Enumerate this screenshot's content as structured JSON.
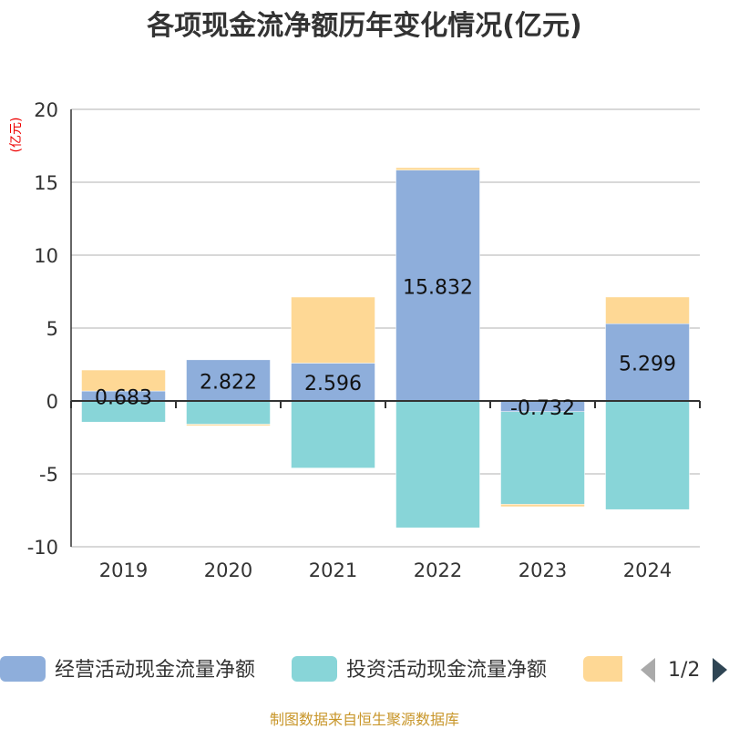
{
  "chart_data": {
    "type": "bar",
    "stacked": true,
    "title": "各项现金流净额历年变化情况(亿元)",
    "ylabel": "(亿元)",
    "xlabel": "",
    "categories": [
      "2019",
      "2020",
      "2021",
      "2022",
      "2023",
      "2024"
    ],
    "ylim": [
      -10,
      20
    ],
    "yticks": [
      -10,
      -5,
      0,
      5,
      10,
      15,
      20
    ],
    "grid": true,
    "series": [
      {
        "name": "经营活动现金流量净额",
        "color": "#8eaedb",
        "values": [
          0.683,
          2.822,
          2.596,
          15.832,
          -0.732,
          5.299
        ],
        "labels": [
          "0.683",
          "2.822",
          "2.596",
          "15.832",
          "-0.732",
          "5.299"
        ]
      },
      {
        "name": "投资活动现金流量净额",
        "color": "#88d5d8",
        "values": [
          -1.45,
          -1.6,
          -4.6,
          -8.7,
          -6.35,
          -7.45
        ]
      },
      {
        "name": "",
        "color": "#fed895",
        "values": [
          1.44,
          -0.1,
          4.53,
          0.17,
          -0.17,
          1.83
        ]
      }
    ],
    "legend": {
      "placement": "bottom",
      "page": "1/2"
    }
  },
  "footer": "制图数据来自恒生聚源数据库"
}
